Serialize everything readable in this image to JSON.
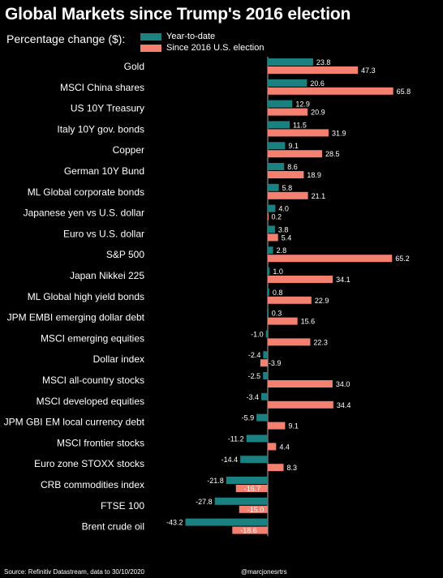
{
  "header": {
    "title": "Global Markets since Trump's 2016 election",
    "subtitle": "Percentage change ($):"
  },
  "footer": {
    "source": "Source: Refinitiv Datastream, data to 30/10/2020",
    "handle": "@marcjonesrtrs"
  },
  "colors": {
    "background": "#000000",
    "ytd": "#1a8080",
    "since_election": "#f4806f",
    "axis": "#aaaaaa"
  },
  "chart_data": {
    "type": "bar",
    "orientation": "horizontal",
    "title": "Global Markets since Trump's 2016 election",
    "subtitle": "Percentage change ($):",
    "categories": [
      "Gold",
      "MSCI China shares",
      "US 10Y Treasury",
      "Italy 10Y gov. bonds",
      "Copper",
      "German 10Y Bund",
      "ML Global corporate bonds",
      "Japanese yen vs U.S. dollar",
      "Euro vs U.S. dollar",
      "S&P 500",
      "Japan Nikkei 225",
      "ML Global high yield bonds",
      "JPM EMBI emerging dollar debt",
      "MSCI emerging equities",
      "Dollar index",
      "MSCI all-country stocks",
      "MSCI developed equities",
      "JPM GBI EM local currency debt",
      "MSCI frontier stocks",
      "Euro zone STOXX stocks",
      "CRB commodities index",
      "FTSE 100",
      "Brent crude oil"
    ],
    "series": [
      {
        "name": "Year-to-date",
        "values": [
          23.8,
          20.6,
          12.9,
          11.5,
          9.1,
          8.6,
          5.8,
          4.0,
          3.8,
          2.8,
          1.0,
          0.8,
          0.3,
          -1.0,
          -2.4,
          -2.5,
          -3.4,
          -5.9,
          -11.2,
          -14.4,
          -21.8,
          -27.8,
          -43.2
        ]
      },
      {
        "name": "Since 2016 U.S. election",
        "values": [
          47.3,
          65.8,
          20.9,
          31.9,
          28.5,
          18.9,
          21.1,
          0.2,
          5.4,
          65.2,
          34.1,
          22.9,
          15.6,
          22.3,
          -3.9,
          34.0,
          34.4,
          9.1,
          4.4,
          8.3,
          -16.7,
          -15.0,
          -18.6
        ]
      }
    ],
    "legend": "top-left",
    "grid": false,
    "xlim": [
      -45,
      70
    ]
  }
}
